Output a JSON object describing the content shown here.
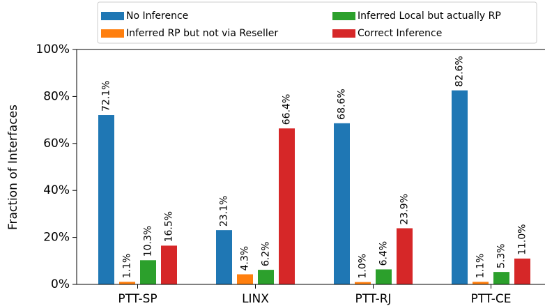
{
  "chart_data": {
    "type": "bar",
    "ylabel": "Fraction of Interfaces",
    "categories": [
      "PTT-SP",
      "LINX",
      "PTT-RJ",
      "PTT-CE"
    ],
    "series": [
      {
        "name": "No Inference",
        "color": "#1f77b4",
        "values": [
          72.1,
          23.1,
          68.6,
          82.6
        ],
        "value_labels": [
          "72.1%",
          "23.1%",
          "68.6%",
          "82.6%"
        ]
      },
      {
        "name": "Inferred RP but not via Reseller",
        "color": "#ff7f0e",
        "values": [
          1.1,
          4.3,
          1.0,
          1.1
        ],
        "value_labels": [
          "1.1%",
          "4.3%",
          "1.0%",
          "1.1%"
        ]
      },
      {
        "name": "Inferred Local but actually RP",
        "color": "#2ca02c",
        "values": [
          10.3,
          6.2,
          6.4,
          5.3
        ],
        "value_labels": [
          "10.3%",
          "6.2%",
          "6.4%",
          "5.3%"
        ]
      },
      {
        "name": "Correct Inference",
        "color": "#d62728",
        "values": [
          16.5,
          66.4,
          23.9,
          11.0
        ],
        "value_labels": [
          "16.5%",
          "66.4%",
          "23.9%",
          "11.0%"
        ]
      }
    ],
    "ylim": [
      0,
      100
    ],
    "yticks": [
      {
        "value": 0,
        "label": "0%"
      },
      {
        "value": 20,
        "label": "20%"
      },
      {
        "value": 40,
        "label": "40%"
      },
      {
        "value": 60,
        "label": "60%"
      },
      {
        "value": 80,
        "label": "80%"
      },
      {
        "value": 100,
        "label": "100%"
      }
    ]
  }
}
